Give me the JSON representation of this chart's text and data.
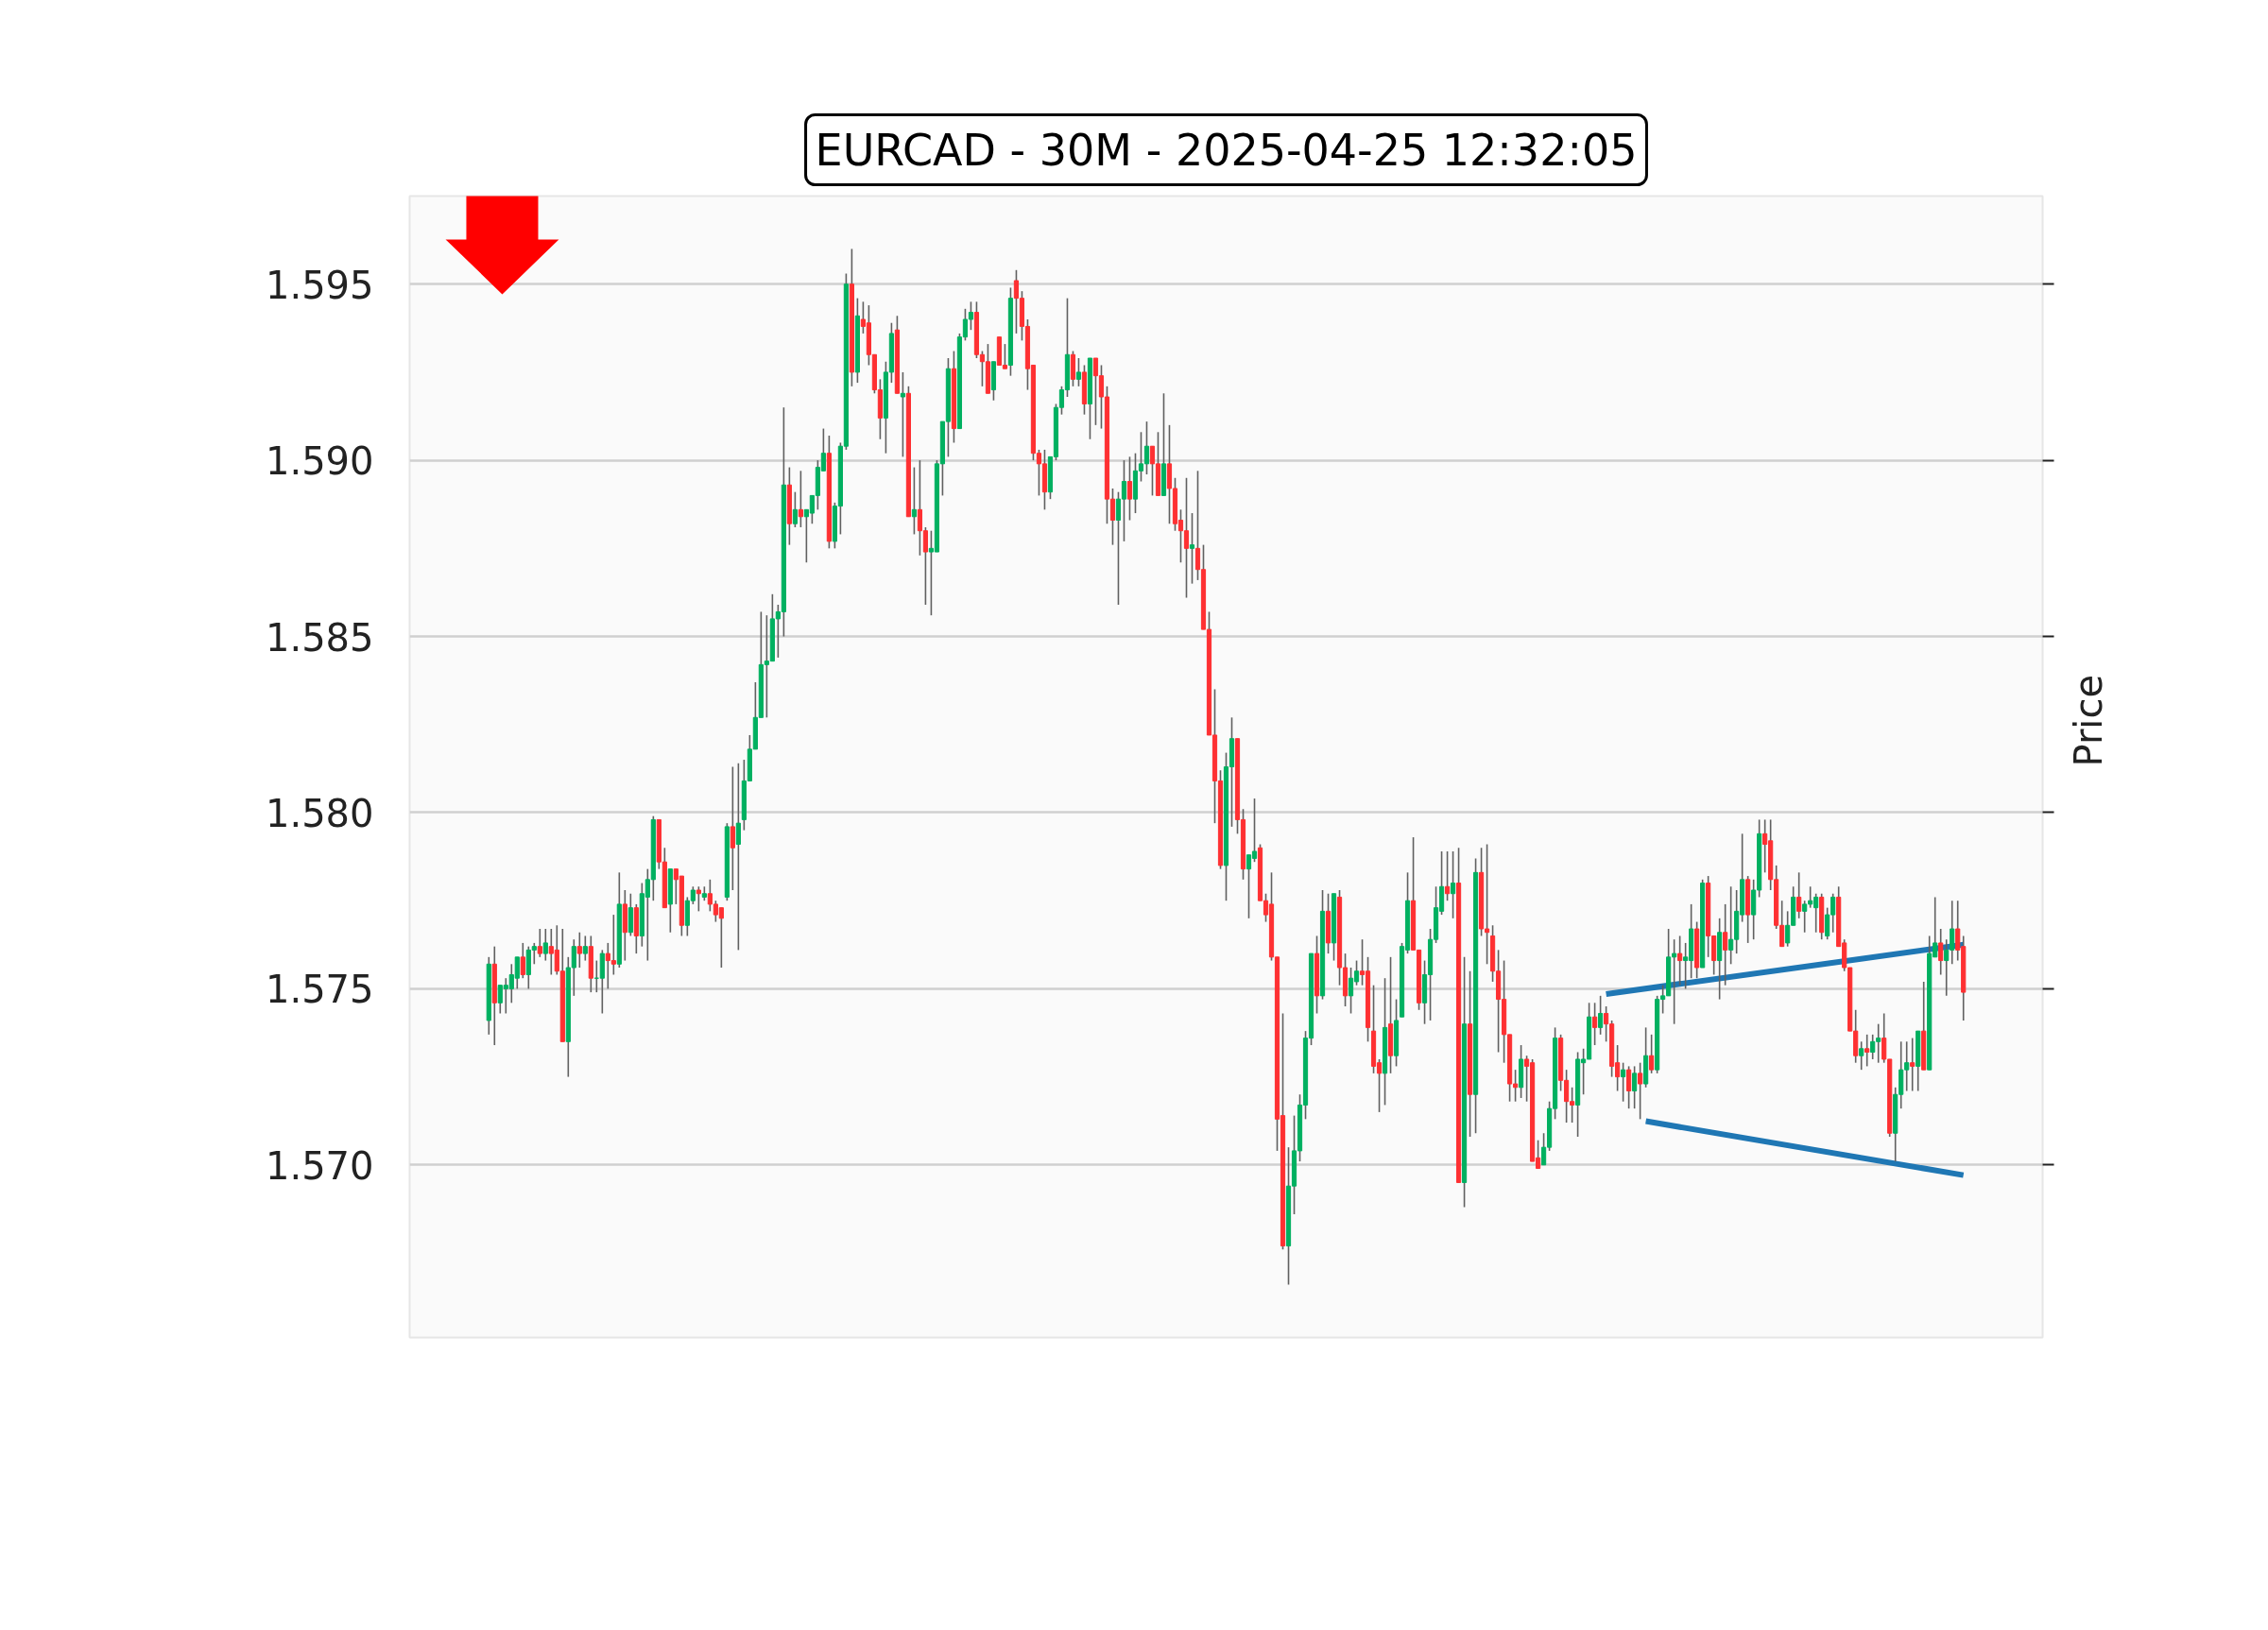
{
  "chart_data": {
    "type": "candlestick",
    "title": "EURCAD - 30M - 2025-04-25 12:32:05",
    "ylabel": "Price",
    "categories": [
      null,
      null,
      null,
      null,
      null,
      null,
      null,
      null,
      null,
      null,
      null,
      null,
      null,
      null,
      null,
      null,
      null,
      null,
      null,
      null,
      null,
      null,
      null,
      null,
      null,
      null,
      null,
      null,
      null,
      null,
      null,
      null,
      null,
      null,
      null,
      null,
      null,
      null,
      null,
      null,
      null,
      null,
      null,
      null,
      null,
      null,
      null,
      null,
      null,
      null,
      null,
      null,
      null,
      null,
      null,
      null,
      null,
      null,
      null,
      null,
      null,
      null,
      null,
      null,
      null,
      null,
      null,
      null,
      null,
      null,
      null,
      null,
      null,
      null,
      null,
      null,
      null,
      null,
      null,
      null,
      null,
      null,
      null,
      null,
      null,
      null,
      null,
      null,
      null,
      null,
      null,
      null,
      null,
      null,
      null,
      null,
      null,
      null,
      null,
      null,
      null,
      null,
      null,
      null,
      null,
      null,
      null,
      null,
      null,
      null,
      null,
      null,
      null,
      null,
      null,
      null,
      null,
      null,
      null,
      null,
      null,
      null,
      null,
      null,
      null,
      null,
      null,
      null,
      null,
      null,
      null,
      null,
      null,
      null,
      null,
      null,
      null,
      null,
      null,
      null,
      null,
      null,
      null,
      null,
      null,
      null,
      null,
      null,
      null,
      null,
      null,
      null,
      null,
      null,
      null,
      null,
      null,
      null,
      null,
      null,
      null,
      null,
      null,
      null,
      null,
      null,
      null,
      null,
      null,
      null,
      null,
      null,
      null,
      null,
      null,
      null,
      null,
      null,
      null,
      null,
      null,
      null,
      null,
      null,
      null,
      null,
      null,
      null,
      null,
      null,
      null,
      null,
      null,
      null,
      null,
      null,
      null,
      null,
      null,
      null,
      null,
      null,
      null,
      null,
      null,
      null,
      null,
      null,
      null,
      null,
      null,
      null,
      null,
      null,
      null,
      null,
      null,
      null,
      null,
      null,
      null,
      null,
      null,
      null,
      null,
      null,
      null,
      null,
      null,
      null,
      null,
      null,
      null,
      null,
      null,
      null,
      null,
      null,
      null,
      null,
      null,
      null,
      null,
      null,
      null,
      null,
      null,
      null,
      null,
      null,
      null,
      null,
      null,
      null,
      null,
      null,
      null,
      null,
      null,
      null,
      null
    ],
    "ohlc": [
      [
        1.5741,
        1.5759,
        1.5737,
        1.5757
      ],
      [
        1.5757,
        1.5762,
        1.5734,
        1.5746
      ],
      [
        1.5746,
        1.5751,
        1.5743,
        1.5751
      ],
      [
        1.575,
        1.5753,
        1.5743,
        1.5751
      ],
      [
        1.575,
        1.5757,
        1.5746,
        1.5754
      ],
      [
        1.5753,
        1.5759,
        1.575,
        1.5759
      ],
      [
        1.5759,
        1.5763,
        1.5753,
        1.5754
      ],
      [
        1.5754,
        1.5762,
        1.575,
        1.5761
      ],
      [
        1.5761,
        1.5763,
        1.5757,
        1.5762
      ],
      [
        1.5762,
        1.5767,
        1.5759,
        1.576
      ],
      [
        1.576,
        1.5767,
        1.5758,
        1.5763
      ],
      [
        1.5762,
        1.5767,
        1.5754,
        1.576
      ],
      [
        1.5761,
        1.5768,
        1.5754,
        1.5755
      ],
      [
        1.5755,
        1.5767,
        1.5735,
        1.5735
      ],
      [
        1.5735,
        1.5759,
        1.5725,
        1.5756
      ],
      [
        1.5756,
        1.5764,
        1.5748,
        1.5762
      ],
      [
        1.5762,
        1.5766,
        1.5756,
        1.576
      ],
      [
        1.576,
        1.5765,
        1.5758,
        1.5762
      ],
      [
        1.5762,
        1.5765,
        1.5749,
        1.5753
      ],
      [
        1.5753,
        1.5758,
        1.5749,
        1.5753
      ],
      [
        1.5753,
        1.5761,
        1.5743,
        1.576
      ],
      [
        1.576,
        1.5763,
        1.575,
        1.5758
      ],
      [
        1.5758,
        1.5771,
        1.5754,
        1.5757
      ],
      [
        1.5757,
        1.5783,
        1.5756,
        1.5774
      ],
      [
        1.5774,
        1.5778,
        1.5758,
        1.5766
      ],
      [
        1.5766,
        1.5777,
        1.5765,
        1.5773
      ],
      [
        1.5773,
        1.5774,
        1.576,
        1.5765
      ],
      [
        1.5765,
        1.578,
        1.5762,
        1.5777
      ],
      [
        1.5776,
        1.5784,
        1.5758,
        1.5781
      ],
      [
        1.5781,
        1.5799,
        1.5775,
        1.5798
      ],
      [
        1.5798,
        1.5798,
        1.5784,
        1.5786
      ],
      [
        1.5786,
        1.579,
        1.5773,
        1.5773
      ],
      [
        1.5774,
        1.5784,
        1.5766,
        1.5784
      ],
      [
        1.5784,
        1.5784,
        1.5774,
        1.5781
      ],
      [
        1.5782,
        1.5782,
        1.5765,
        1.5768
      ],
      [
        1.5768,
        1.5776,
        1.5765,
        1.5775
      ],
      [
        1.5775,
        1.5779,
        1.5774,
        1.5778
      ],
      [
        1.5778,
        1.5779,
        1.5772,
        1.5777
      ],
      [
        1.5776,
        1.5779,
        1.5775,
        1.5777
      ],
      [
        1.5777,
        1.5781,
        1.5772,
        1.5774
      ],
      [
        1.5774,
        1.5775,
        1.5769,
        1.5771
      ],
      [
        1.5773,
        1.5773,
        1.5756,
        1.577
      ],
      [
        1.5776,
        1.5797,
        1.5775,
        1.5796
      ],
      [
        1.5796,
        1.5813,
        1.5778,
        1.579
      ],
      [
        1.5791,
        1.5814,
        1.5761,
        1.5797
      ],
      [
        1.5798,
        1.5815,
        1.5795,
        1.5809
      ],
      [
        1.5809,
        1.5822,
        1.5809,
        1.5818
      ],
      [
        1.5818,
        1.5837,
        1.5818,
        1.5827
      ],
      [
        1.5827,
        1.5857,
        1.5827,
        1.5842
      ],
      [
        1.5842,
        1.5856,
        1.5827,
        1.5843
      ],
      [
        1.5843,
        1.5862,
        1.5843,
        1.5855
      ],
      [
        1.5855,
        1.5859,
        1.5844,
        1.5857
      ],
      [
        1.5857,
        1.5915,
        1.585,
        1.5893
      ],
      [
        1.5893,
        1.5898,
        1.5876,
        1.5882
      ],
      [
        1.5882,
        1.5891,
        1.5881,
        1.5886
      ],
      [
        1.5886,
        1.5897,
        1.5881,
        1.5884
      ],
      [
        1.5884,
        1.5886,
        1.5871,
        1.5886
      ],
      [
        1.5885,
        1.589,
        1.5882,
        1.589
      ],
      [
        1.589,
        1.59,
        1.5886,
        1.5898
      ],
      [
        1.5897,
        1.5909,
        1.5897,
        1.5902
      ],
      [
        1.5902,
        1.5907,
        1.5875,
        1.5877
      ],
      [
        1.5877,
        1.5888,
        1.5875,
        1.5887
      ],
      [
        1.5887,
        1.5905,
        1.5879,
        1.5904
      ],
      [
        1.5904,
        1.5953,
        1.5903,
        1.595
      ],
      [
        1.595,
        1.596,
        1.5921,
        1.5925
      ],
      [
        1.5925,
        1.5946,
        1.5922,
        1.5941
      ],
      [
        1.594,
        1.5945,
        1.5936,
        1.5938
      ],
      [
        1.5939,
        1.5944,
        1.5927,
        1.593
      ],
      [
        1.593,
        1.593,
        1.5919,
        1.592
      ],
      [
        1.592,
        1.5923,
        1.5906,
        1.5912
      ],
      [
        1.5912,
        1.5928,
        1.5902,
        1.5925
      ],
      [
        1.5925,
        1.5939,
        1.5922,
        1.5936
      ],
      [
        1.5937,
        1.5941,
        1.5919,
        1.5919
      ],
      [
        1.5918,
        1.5925,
        1.5901,
        1.5919
      ],
      [
        1.5919,
        1.5921,
        1.5884,
        1.5884
      ],
      [
        1.5884,
        1.5898,
        1.5879,
        1.5886
      ],
      [
        1.5886,
        1.59,
        1.5873,
        1.588
      ],
      [
        1.588,
        1.5881,
        1.5859,
        1.5874
      ],
      [
        1.5874,
        1.588,
        1.5856,
        1.5875
      ],
      [
        1.5874,
        1.59,
        1.5874,
        1.5899
      ],
      [
        1.5899,
        1.5911,
        1.589,
        1.5911
      ],
      [
        1.5911,
        1.5929,
        1.5901,
        1.5926
      ],
      [
        1.5926,
        1.5931,
        1.5905,
        1.5909
      ],
      [
        1.5909,
        1.5936,
        1.5909,
        1.5935
      ],
      [
        1.5935,
        1.5943,
        1.5934,
        1.594
      ],
      [
        1.594,
        1.5945,
        1.5937,
        1.5942
      ],
      [
        1.5942,
        1.5945,
        1.5929,
        1.593
      ],
      [
        1.593,
        1.5931,
        1.5921,
        1.5928
      ],
      [
        1.5928,
        1.5933,
        1.5919,
        1.5919
      ],
      [
        1.592,
        1.5928,
        1.5917,
        1.5928
      ],
      [
        1.5935,
        1.5935,
        1.5927,
        1.5927
      ],
      [
        1.5927,
        1.5933,
        1.5926,
        1.5926
      ],
      [
        1.5927,
        1.5949,
        1.5924,
        1.5946
      ],
      [
        1.5951,
        1.5954,
        1.5936,
        1.5946
      ],
      [
        1.5946,
        1.5948,
        1.5934,
        1.5938
      ],
      [
        1.5938,
        1.594,
        1.592,
        1.5926
      ],
      [
        1.5927,
        1.5927,
        1.59,
        1.5902
      ],
      [
        1.5902,
        1.5903,
        1.589,
        1.5899
      ],
      [
        1.5899,
        1.5903,
        1.5886,
        1.5891
      ],
      [
        1.5891,
        1.5901,
        1.5889,
        1.5901
      ],
      [
        1.5901,
        1.5916,
        1.59,
        1.5915
      ],
      [
        1.5915,
        1.5921,
        1.5913,
        1.592
      ],
      [
        1.592,
        1.5946,
        1.5918,
        1.593
      ],
      [
        1.593,
        1.5931,
        1.5921,
        1.5923
      ],
      [
        1.5923,
        1.5929,
        1.5921,
        1.5925
      ],
      [
        1.5925,
        1.5927,
        1.5913,
        1.5916
      ],
      [
        1.5916,
        1.5929,
        1.5906,
        1.5929
      ],
      [
        1.5929,
        1.5929,
        1.591,
        1.5924
      ],
      [
        1.5924,
        1.5927,
        1.5909,
        1.5918
      ],
      [
        1.5918,
        1.5921,
        1.5882,
        1.5889
      ],
      [
        1.5889,
        1.5892,
        1.5876,
        1.5883
      ],
      [
        1.5883,
        1.5891,
        1.5859,
        1.5889
      ],
      [
        1.5889,
        1.59,
        1.5877,
        1.5894
      ],
      [
        1.5894,
        1.5901,
        1.5883,
        1.5889
      ],
      [
        1.5889,
        1.5902,
        1.5885,
        1.5897
      ],
      [
        1.5897,
        1.5908,
        1.5894,
        1.5899
      ],
      [
        1.5899,
        1.5911,
        1.5896,
        1.5904
      ],
      [
        1.5904,
        1.5904,
        1.589,
        1.5899
      ],
      [
        1.5899,
        1.5908,
        1.589,
        1.589
      ],
      [
        1.589,
        1.5919,
        1.589,
        1.5899
      ],
      [
        1.5899,
        1.591,
        1.5882,
        1.5892
      ],
      [
        1.5892,
        1.5895,
        1.588,
        1.5882
      ],
      [
        1.5883,
        1.5886,
        1.5871,
        1.588
      ],
      [
        1.588,
        1.5895,
        1.5861,
        1.5875
      ],
      [
        1.5875,
        1.5885,
        1.5865,
        1.5876
      ],
      [
        1.5875,
        1.5897,
        1.5866,
        1.5869
      ],
      [
        1.5869,
        1.5876,
        1.5852,
        1.5852
      ],
      [
        1.5852,
        1.5857,
        1.5822,
        1.5822
      ],
      [
        1.5822,
        1.5835,
        1.5797,
        1.5809
      ],
      [
        1.5809,
        1.5812,
        1.5784,
        1.5785
      ],
      [
        1.5785,
        1.5817,
        1.5775,
        1.5813
      ],
      [
        1.5813,
        1.5827,
        1.5796,
        1.5821
      ],
      [
        1.5821,
        1.5821,
        1.5794,
        1.5798
      ],
      [
        1.5798,
        1.5801,
        1.5781,
        1.5784
      ],
      [
        1.5784,
        1.5788,
        1.577,
        1.5788
      ],
      [
        1.5787,
        1.5804,
        1.5786,
        1.5789
      ],
      [
        1.579,
        1.5791,
        1.5775,
        1.5775
      ],
      [
        1.5775,
        1.5777,
        1.5769,
        1.5771
      ],
      [
        1.5774,
        1.5783,
        1.5758,
        1.5759
      ],
      [
        1.5759,
        1.5759,
        1.5704,
        1.5713
      ],
      [
        1.5714,
        1.5743,
        1.5676,
        1.5677
      ],
      [
        1.5677,
        1.5705,
        1.5666,
        1.5694
      ],
      [
        1.5694,
        1.5714,
        1.5686,
        1.5704
      ],
      [
        1.5704,
        1.572,
        1.5701,
        1.5717
      ],
      [
        1.5717,
        1.5738,
        1.5713,
        1.5736
      ],
      [
        1.5736,
        1.576,
        1.5734,
        1.576
      ],
      [
        1.576,
        1.5765,
        1.5743,
        1.5748
      ],
      [
        1.5748,
        1.5778,
        1.5747,
        1.5772
      ],
      [
        1.5772,
        1.5777,
        1.576,
        1.5763
      ],
      [
        1.5763,
        1.5777,
        1.5758,
        1.5777
      ],
      [
        1.5776,
        1.5778,
        1.5751,
        1.5756
      ],
      [
        1.5756,
        1.576,
        1.5745,
        1.5748
      ],
      [
        1.5748,
        1.5756,
        1.5743,
        1.5753
      ],
      [
        1.5752,
        1.5758,
        1.5751,
        1.5755
      ],
      [
        1.5755,
        1.5764,
        1.5751,
        1.5754
      ],
      [
        1.5755,
        1.5759,
        1.5735,
        1.5739
      ],
      [
        1.5738,
        1.5751,
        1.5726,
        1.5728
      ],
      [
        1.5729,
        1.573,
        1.5715,
        1.5726
      ],
      [
        1.5726,
        1.5753,
        1.5717,
        1.5739
      ],
      [
        1.574,
        1.5759,
        1.5726,
        1.5731
      ],
      [
        1.5731,
        1.5747,
        1.5728,
        1.5741
      ],
      [
        1.5742,
        1.5763,
        1.5742,
        1.5762
      ],
      [
        1.5761,
        1.5783,
        1.576,
        1.5775
      ],
      [
        1.5775,
        1.5793,
        1.5761,
        1.5761
      ],
      [
        1.5761,
        1.5761,
        1.5744,
        1.5746
      ],
      [
        1.5746,
        1.5758,
        1.574,
        1.5754
      ],
      [
        1.5754,
        1.5767,
        1.5741,
        1.5764
      ],
      [
        1.5764,
        1.5779,
        1.5763,
        1.5773
      ],
      [
        1.5772,
        1.5789,
        1.5771,
        1.5779
      ],
      [
        1.5779,
        1.5789,
        1.5775,
        1.5777
      ],
      [
        1.5777,
        1.5789,
        1.577,
        1.578
      ],
      [
        1.578,
        1.579,
        1.5695,
        1.5695
      ],
      [
        1.5695,
        1.5759,
        1.5688,
        1.574
      ],
      [
        1.574,
        1.5755,
        1.5708,
        1.572
      ],
      [
        1.572,
        1.5787,
        1.5709,
        1.5783
      ],
      [
        1.5783,
        1.579,
        1.5765,
        1.5767
      ],
      [
        1.5767,
        1.5791,
        1.5757,
        1.5766
      ],
      [
        1.5765,
        1.5768,
        1.5752,
        1.5755
      ],
      [
        1.5755,
        1.5761,
        1.5732,
        1.5747
      ],
      [
        1.5747,
        1.5758,
        1.5729,
        1.5737
      ],
      [
        1.5737,
        1.5737,
        1.5718,
        1.5723
      ],
      [
        1.5723,
        1.5727,
        1.5718,
        1.5722
      ],
      [
        1.5722,
        1.5734,
        1.5719,
        1.573
      ],
      [
        1.573,
        1.5731,
        1.5718,
        1.5728
      ],
      [
        1.5729,
        1.573,
        1.5701,
        1.5701
      ],
      [
        1.5702,
        1.5707,
        1.5699,
        1.5699
      ],
      [
        1.57,
        1.5709,
        1.57,
        1.5705
      ],
      [
        1.5705,
        1.5718,
        1.5704,
        1.5716
      ],
      [
        1.5716,
        1.5739,
        1.5713,
        1.5736
      ],
      [
        1.5736,
        1.5737,
        1.5721,
        1.5724
      ],
      [
        1.5724,
        1.5727,
        1.5712,
        1.5718
      ],
      [
        1.5718,
        1.5722,
        1.5712,
        1.5717
      ],
      [
        1.5717,
        1.5732,
        1.5708,
        1.573
      ],
      [
        1.5729,
        1.5733,
        1.572,
        1.573
      ],
      [
        1.573,
        1.5746,
        1.573,
        1.5742
      ],
      [
        1.5742,
        1.5746,
        1.5734,
        1.5739
      ],
      [
        1.5739,
        1.5748,
        1.5737,
        1.5743
      ],
      [
        1.5743,
        1.5745,
        1.5735,
        1.574
      ],
      [
        1.574,
        1.5741,
        1.5725,
        1.5728
      ],
      [
        1.5729,
        1.5734,
        1.5721,
        1.5725
      ],
      [
        1.5725,
        1.5729,
        1.5718,
        1.5727
      ],
      [
        1.5727,
        1.5728,
        1.5716,
        1.5721
      ],
      [
        1.5721,
        1.5728,
        1.5716,
        1.5726
      ],
      [
        1.5726,
        1.5729,
        1.5713,
        1.5723
      ],
      [
        1.5723,
        1.5739,
        1.5722,
        1.5731
      ],
      [
        1.5731,
        1.5737,
        1.5726,
        1.5727
      ],
      [
        1.5727,
        1.5748,
        1.5726,
        1.5747
      ],
      [
        1.5747,
        1.5751,
        1.5743,
        1.5748
      ],
      [
        1.5748,
        1.5767,
        1.5748,
        1.5759
      ],
      [
        1.5759,
        1.5764,
        1.574,
        1.576
      ],
      [
        1.576,
        1.5765,
        1.5751,
        1.5758
      ],
      [
        1.5758,
        1.5763,
        1.575,
        1.5759
      ],
      [
        1.5758,
        1.5774,
        1.5753,
        1.5767
      ],
      [
        1.5767,
        1.5769,
        1.5753,
        1.5756
      ],
      [
        1.5756,
        1.5781,
        1.5756,
        1.578
      ],
      [
        1.578,
        1.5782,
        1.5759,
        1.5765
      ],
      [
        1.5765,
        1.5765,
        1.5754,
        1.5758
      ],
      [
        1.5758,
        1.577,
        1.5747,
        1.5766
      ],
      [
        1.5766,
        1.5774,
        1.5751,
        1.5761
      ],
      [
        1.5761,
        1.5779,
        1.5757,
        1.5764
      ],
      [
        1.5764,
        1.5778,
        1.576,
        1.5772
      ],
      [
        1.5771,
        1.5794,
        1.5769,
        1.5781
      ],
      [
        1.5781,
        1.5782,
        1.5763,
        1.5771
      ],
      [
        1.5771,
        1.5781,
        1.5764,
        1.5778
      ],
      [
        1.5778,
        1.5798,
        1.5776,
        1.5794
      ],
      [
        1.5794,
        1.5798,
        1.5783,
        1.5791
      ],
      [
        1.5792,
        1.5798,
        1.5778,
        1.5781
      ],
      [
        1.5781,
        1.5785,
        1.5767,
        1.5768
      ],
      [
        1.5768,
        1.5775,
        1.5762,
        1.5762
      ],
      [
        1.5763,
        1.5772,
        1.5762,
        1.5768
      ],
      [
        1.5768,
        1.5779,
        1.5768,
        1.5776
      ],
      [
        1.5776,
        1.5783,
        1.577,
        1.5772
      ],
      [
        1.5772,
        1.5775,
        1.5766,
        1.5774
      ],
      [
        1.5774,
        1.5779,
        1.5773,
        1.5775
      ],
      [
        1.5773,
        1.5777,
        1.5766,
        1.5776
      ],
      [
        1.5776,
        1.5777,
        1.5764,
        1.5766
      ],
      [
        1.5765,
        1.5773,
        1.5764,
        1.5771
      ],
      [
        1.5771,
        1.5777,
        1.5766,
        1.5776
      ],
      [
        1.5776,
        1.5779,
        1.5762,
        1.5762
      ],
      [
        1.5763,
        1.5764,
        1.5755,
        1.5756
      ],
      [
        1.5756,
        1.5756,
        1.5738,
        1.5738
      ],
      [
        1.5738,
        1.5744,
        1.5729,
        1.5731
      ],
      [
        1.5731,
        1.5735,
        1.5727,
        1.5733
      ],
      [
        1.5733,
        1.5737,
        1.5728,
        1.5732
      ],
      [
        1.5732,
        1.5737,
        1.573,
        1.5735
      ],
      [
        1.5735,
        1.574,
        1.5729,
        1.5736
      ],
      [
        1.5736,
        1.5743,
        1.5729,
        1.573
      ],
      [
        1.573,
        1.573,
        1.5708,
        1.5709
      ],
      [
        1.5709,
        1.5722,
        1.5701,
        1.572
      ],
      [
        1.572,
        1.5735,
        1.5716,
        1.5727
      ],
      [
        1.5727,
        1.5735,
        1.5721,
        1.5729
      ],
      [
        1.5729,
        1.5736,
        1.5721,
        1.5728
      ],
      [
        1.5728,
        1.5738,
        1.5721,
        1.5738
      ],
      [
        1.5738,
        1.5752,
        1.5727,
        1.5727
      ],
      [
        1.5727,
        1.5765,
        1.5727,
        1.576
      ],
      [
        1.5759,
        1.5776,
        1.5759,
        1.5763
      ],
      [
        1.5763,
        1.5767,
        1.5754,
        1.5758
      ],
      [
        1.5758,
        1.5764,
        1.5748,
        1.5761
      ],
      [
        1.5761,
        1.5775,
        1.5757,
        1.5767
      ],
      [
        1.5767,
        1.5775,
        1.5758,
        1.5761
      ],
      [
        1.5762,
        1.5765,
        1.5741,
        1.5749
      ]
    ],
    "colors": [
      "#00b060",
      "#fe3032",
      "#00b060",
      "#00b060",
      "#00b060",
      "#00b060",
      "#fe3032",
      "#00b060",
      "#00b060",
      "#fe3032",
      "#00b060",
      "#fe3032",
      "#fe3032",
      "#fe3032",
      "#00b060",
      "#00b060",
      "#fe3032",
      "#00b060",
      "#fe3032",
      "#00b060",
      "#00b060",
      "#fe3032",
      "#fe3032",
      "#00b060",
      "#fe3032",
      "#00b060",
      "#fe3032",
      "#00b060",
      "#00b060",
      "#00b060",
      "#fe3032",
      "#fe3032",
      "#00b060",
      "#fe3032",
      "#fe3032",
      "#00b060",
      "#00b060",
      "#fe3032",
      "#00b060",
      "#fe3032",
      "#fe3032",
      "#fe3032",
      "#00b060",
      "#fe3032",
      "#00b060",
      "#00b060",
      "#00b060",
      "#00b060",
      "#00b060",
      "#00b060",
      "#00b060",
      "#00b060",
      "#00b060",
      "#fe3032",
      "#00b060",
      "#fe3032",
      "#00b060",
      "#00b060",
      "#00b060",
      "#00b060",
      "#fe3032",
      "#00b060",
      "#00b060",
      "#00b060",
      "#fe3032",
      "#00b060",
      "#fe3032",
      "#fe3032",
      "#fe3032",
      "#fe3032",
      "#00b060",
      "#00b060",
      "#fe3032",
      "#00b060",
      "#fe3032",
      "#00b060",
      "#fe3032",
      "#fe3032",
      "#00b060",
      "#00b060",
      "#00b060",
      "#00b060",
      "#fe3032",
      "#00b060",
      "#00b060",
      "#00b060",
      "#fe3032",
      "#fe3032",
      "#fe3032",
      "#00b060",
      "#fe3032",
      "#fe3032",
      "#00b060",
      "#fe3032",
      "#fe3032",
      "#fe3032",
      "#fe3032",
      "#fe3032",
      "#fe3032",
      "#00b060",
      "#00b060",
      "#00b060",
      "#00b060",
      "#fe3032",
      "#00b060",
      "#fe3032",
      "#00b060",
      "#fe3032",
      "#fe3032",
      "#fe3032",
      "#fe3032",
      "#00b060",
      "#00b060",
      "#fe3032",
      "#00b060",
      "#00b060",
      "#00b060",
      "#fe3032",
      "#fe3032",
      "#00b060",
      "#fe3032",
      "#fe3032",
      "#fe3032",
      "#fe3032",
      "#00b060",
      "#fe3032",
      "#fe3032",
      "#fe3032",
      "#fe3032",
      "#fe3032",
      "#00b060",
      "#00b060",
      "#fe3032",
      "#fe3032",
      "#00b060",
      "#00b060",
      "#fe3032",
      "#fe3032",
      "#fe3032",
      "#fe3032",
      "#fe3032",
      "#00b060",
      "#00b060",
      "#00b060",
      "#00b060",
      "#00b060",
      "#fe3032",
      "#00b060",
      "#fe3032",
      "#00b060",
      "#fe3032",
      "#fe3032",
      "#00b060",
      "#00b060",
      "#fe3032",
      "#fe3032",
      "#fe3032",
      "#fe3032",
      "#00b060",
      "#fe3032",
      "#00b060",
      "#00b060",
      "#00b060",
      "#fe3032",
      "#fe3032",
      "#00b060",
      "#00b060",
      "#00b060",
      "#00b060",
      "#fe3032",
      "#00b060",
      "#fe3032",
      "#00b060",
      "#fe3032",
      "#00b060",
      "#fe3032",
      "#fe3032",
      "#fe3032",
      "#fe3032",
      "#fe3032",
      "#fe3032",
      "#fe3032",
      "#00b060",
      "#fe3032",
      "#fe3032",
      "#fe3032",
      "#00b060",
      "#00b060",
      "#00b060",
      "#fe3032",
      "#fe3032",
      "#fe3032",
      "#00b060",
      "#00b060",
      "#00b060",
      "#fe3032",
      "#00b060",
      "#fe3032",
      "#fe3032",
      "#fe3032",
      "#00b060",
      "#fe3032",
      "#00b060",
      "#fe3032",
      "#00b060",
      "#fe3032",
      "#00b060",
      "#00b060",
      "#00b060",
      "#00b060",
      "#fe3032",
      "#00b060",
      "#00b060",
      "#fe3032",
      "#00b060",
      "#fe3032",
      "#fe3032",
      "#00b060",
      "#fe3032",
      "#00b060",
      "#00b060",
      "#00b060",
      "#fe3032",
      "#00b060",
      "#00b060",
      "#fe3032",
      "#fe3032",
      "#fe3032",
      "#fe3032",
      "#00b060",
      "#00b060",
      "#fe3032",
      "#00b060",
      "#00b060",
      "#00b060",
      "#fe3032",
      "#00b060",
      "#00b060",
      "#fe3032",
      "#fe3032",
      "#fe3032",
      "#fe3032",
      "#00b060",
      "#fe3032",
      "#00b060",
      "#00b060",
      "#fe3032",
      "#fe3032",
      "#00b060",
      "#00b060",
      "#00b060",
      "#fe3032",
      "#00b060",
      "#fe3032",
      "#00b060",
      "#00b060",
      "#fe3032",
      "#00b060",
      "#00b060",
      "#fe3032",
      "#fe3032"
    ],
    "series": [
      {
        "type": "line",
        "color": "#1f77b4",
        "values": [
          null,
          null,
          null,
          null,
          null,
          null,
          null,
          null,
          null,
          null,
          null,
          null,
          null,
          null,
          null,
          null,
          null,
          null,
          null,
          null,
          null,
          null,
          null,
          null,
          null,
          null,
          null,
          null,
          null,
          null,
          null,
          null,
          null,
          null,
          null,
          null,
          null,
          null,
          null,
          null,
          null,
          null,
          null,
          null,
          null,
          null,
          null,
          null,
          null,
          null,
          null,
          null,
          null,
          null,
          null,
          null,
          null,
          null,
          null,
          null,
          null,
          null,
          null,
          null,
          null,
          null,
          null,
          null,
          null,
          null,
          null,
          null,
          null,
          null,
          null,
          null,
          null,
          null,
          null,
          null,
          null,
          null,
          null,
          null,
          null,
          null,
          null,
          null,
          null,
          null,
          null,
          null,
          null,
          null,
          null,
          null,
          null,
          null,
          null,
          null,
          null,
          null,
          null,
          null,
          null,
          null,
          null,
          null,
          null,
          null,
          null,
          null,
          null,
          null,
          null,
          null,
          null,
          null,
          null,
          null,
          null,
          null,
          null,
          null,
          null,
          null,
          null,
          null,
          null,
          null,
          null,
          null,
          null,
          null,
          null,
          null,
          null,
          null,
          null,
          null,
          null,
          null,
          null,
          null,
          null,
          null,
          null,
          null,
          null,
          null,
          null,
          null,
          null,
          null,
          null,
          null,
          null,
          null,
          null,
          null,
          null,
          null,
          null,
          null,
          null,
          null,
          null,
          null,
          null,
          null,
          null,
          null,
          null,
          null,
          null,
          null,
          null,
          null,
          null,
          null,
          null,
          null,
          null,
          null,
          null,
          null,
          null,
          null,
          null,
          null,
          null,
          null,
          null,
          null,
          null,
          null,
          null,
          1.57485,
          null,
          null,
          null,
          null,
          null,
          null,
          null,
          null,
          null,
          null,
          null,
          null,
          null,
          null,
          null,
          null,
          null,
          null,
          null,
          null,
          null,
          null,
          null,
          null,
          null,
          null,
          null,
          null,
          null,
          null,
          null,
          null,
          null,
          null,
          null,
          null,
          null,
          null,
          null,
          null,
          null,
          null,
          null,
          null,
          null,
          null,
          null,
          null,
          null,
          null,
          null,
          null,
          null,
          null,
          null,
          null,
          null,
          null,
          null,
          null,
          null,
          null,
          1.57625
        ]
      },
      {
        "type": "line",
        "color": "#1f77b4",
        "values": [
          null,
          null,
          null,
          null,
          null,
          null,
          null,
          null,
          null,
          null,
          null,
          null,
          null,
          null,
          null,
          null,
          null,
          null,
          null,
          null,
          null,
          null,
          null,
          null,
          null,
          null,
          null,
          null,
          null,
          null,
          null,
          null,
          null,
          null,
          null,
          null,
          null,
          null,
          null,
          null,
          null,
          null,
          null,
          null,
          null,
          null,
          null,
          null,
          null,
          null,
          null,
          null,
          null,
          null,
          null,
          null,
          null,
          null,
          null,
          null,
          null,
          null,
          null,
          null,
          null,
          null,
          null,
          null,
          null,
          null,
          null,
          null,
          null,
          null,
          null,
          null,
          null,
          null,
          null,
          null,
          null,
          null,
          null,
          null,
          null,
          null,
          null,
          null,
          null,
          null,
          null,
          null,
          null,
          null,
          null,
          null,
          null,
          null,
          null,
          null,
          null,
          null,
          null,
          null,
          null,
          null,
          null,
          null,
          null,
          null,
          null,
          null,
          null,
          null,
          null,
          null,
          null,
          null,
          null,
          null,
          null,
          null,
          null,
          null,
          null,
          null,
          null,
          null,
          null,
          null,
          null,
          null,
          null,
          null,
          null,
          null,
          null,
          null,
          null,
          null,
          null,
          null,
          null,
          null,
          null,
          null,
          null,
          null,
          null,
          null,
          null,
          null,
          null,
          null,
          null,
          null,
          null,
          null,
          null,
          null,
          null,
          null,
          null,
          null,
          null,
          null,
          null,
          null,
          null,
          null,
          null,
          null,
          null,
          null,
          null,
          null,
          null,
          null,
          null,
          null,
          null,
          null,
          null,
          null,
          null,
          null,
          null,
          null,
          null,
          null,
          null,
          null,
          null,
          null,
          null,
          null,
          null,
          null,
          null,
          null,
          null,
          null,
          null,
          null,
          1.57124,
          null,
          null,
          null,
          null,
          null,
          null,
          null,
          null,
          null,
          null,
          null,
          null,
          null,
          null,
          null,
          null,
          null,
          null,
          null,
          null,
          null,
          null,
          null,
          null,
          null,
          null,
          null,
          null,
          null,
          null,
          null,
          null,
          null,
          null,
          null,
          null,
          null,
          null,
          null,
          null,
          null,
          null,
          null,
          null,
          null,
          null,
          null,
          null,
          null,
          null,
          null,
          null,
          null,
          null,
          null,
          1.56971
        ]
      }
    ],
    "ylim": [
      1.5651,
      1.5975
    ],
    "yticks": [
      {
        "value": 1.57,
        "label": "1.570"
      },
      1.575,
      {
        "value": 1.58,
        "label": "1.580"
      },
      1.585,
      {
        "value": 1.59,
        "label": "1.590"
      },
      1.595
    ],
    "grid": "y",
    "tick_labels": "y"
  }
}
